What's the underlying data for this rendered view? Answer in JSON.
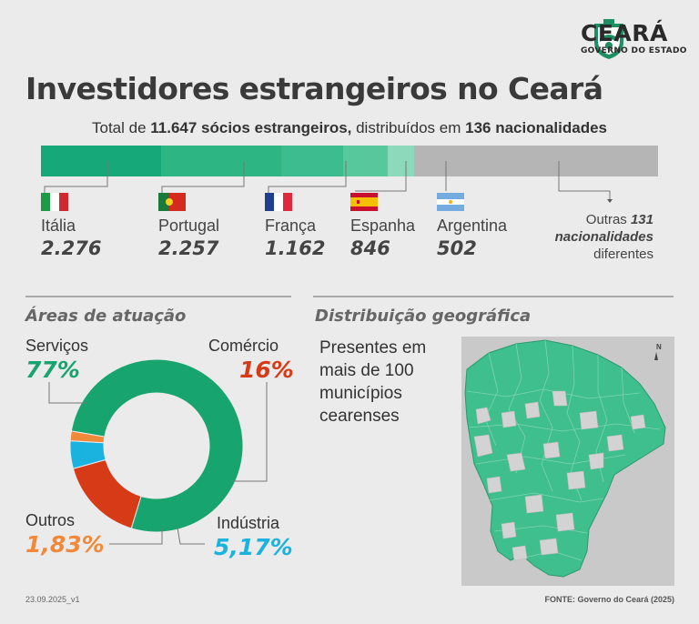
{
  "header": {
    "brand": "CEARÁ",
    "brand_sub": "GOVERNO DO ESTADO",
    "title": "Investidores estrangeiros no Ceará",
    "subtitle_pre": "Total de ",
    "subtitle_total": "11.647 sócios estrangeiros,",
    "subtitle_mid": " distribuídos em ",
    "subtitle_nat": "136 nacionalidades"
  },
  "colors": {
    "green_dark": "#16a878",
    "green_1": "#2db583",
    "green_2": "#3dbd8f",
    "green_3": "#57c79c",
    "green_4": "#8dd9bb",
    "gray": "#b5b5b5",
    "servicos": "#18a46e",
    "comercio": "#d63a17",
    "industria": "#1ab3e0",
    "outros": "#f08a3a"
  },
  "chart_data": [
    {
      "type": "bar",
      "title": "Total de 11.647 sócios estrangeiros, distribuídos em 136 nacionalidades",
      "categories": [
        "Itália",
        "Portugal",
        "França",
        "Espanha",
        "Argentina",
        "Outras 131 nacionalidades diferentes"
      ],
      "values": [
        2276,
        2257,
        1162,
        846,
        502,
        4604
      ],
      "value_labels": [
        "2.276",
        "2.257",
        "1.162",
        "846",
        "502",
        ""
      ],
      "stacked": true,
      "orientation": "horizontal"
    },
    {
      "type": "pie",
      "title": "Áreas de atuação",
      "donut": true,
      "categories": [
        "Serviços",
        "Comércio",
        "Indústria",
        "Outros"
      ],
      "values": [
        77,
        16,
        5.17,
        1.83
      ],
      "value_labels": [
        "77%",
        "16%",
        "5,17%",
        "1,83%"
      ]
    }
  ],
  "others": {
    "pre": "Outras ",
    "bold": "131 nacionalidades",
    "post": "diferentes"
  },
  "areas": {
    "section_title": "Áreas de atuação"
  },
  "geo": {
    "section_title": "Distribuição geográfica",
    "text": "Presentes em mais de 100 municípios cearenses",
    "north_label": "N"
  },
  "footer": {
    "date": "23.09.2025_v1",
    "source": "FONTE: Governo do Ceará (2025)"
  }
}
